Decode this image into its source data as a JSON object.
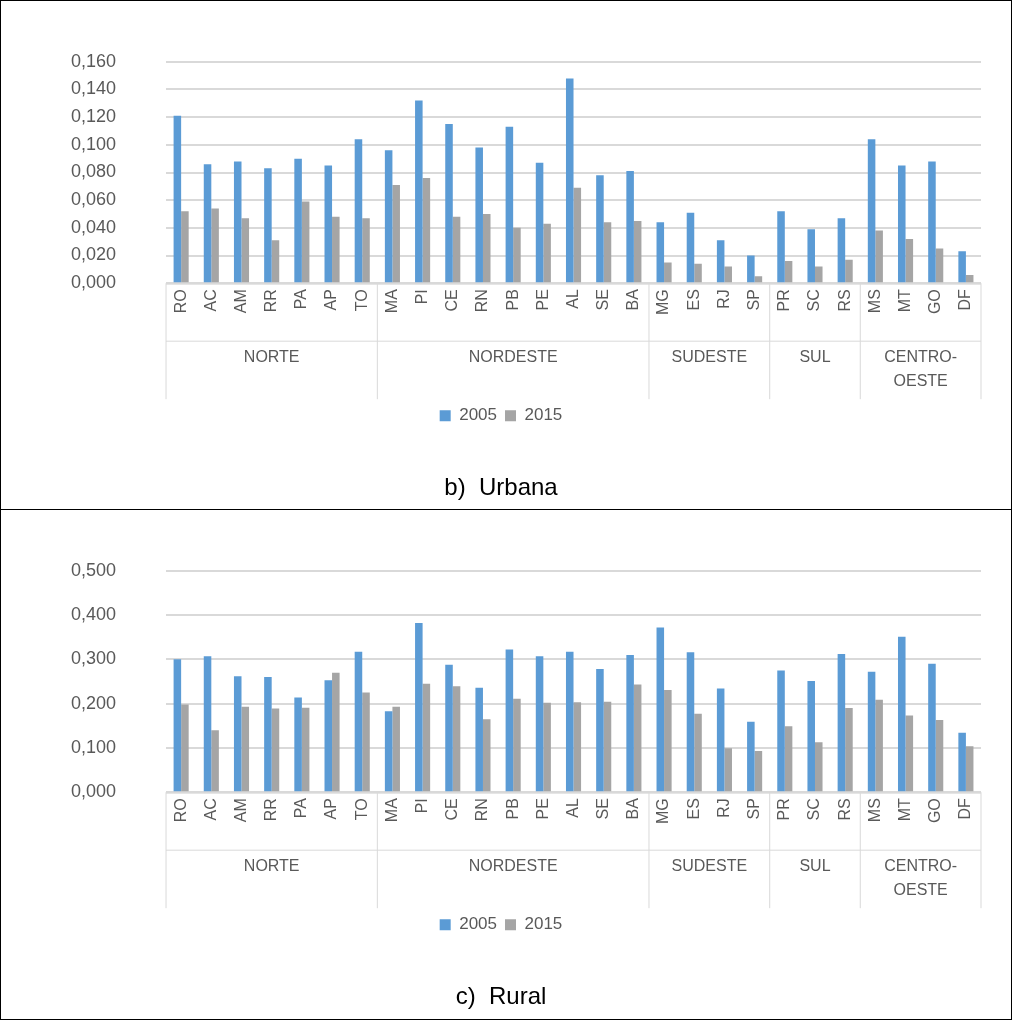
{
  "chart_data": [
    {
      "type": "bar",
      "title": "b)  Urbana",
      "categories": [
        "RO",
        "AC",
        "AM",
        "RR",
        "PA",
        "AP",
        "TO",
        "MA",
        "PI",
        "CE",
        "RN",
        "PB",
        "PE",
        "AL",
        "SE",
        "BA",
        "MG",
        "ES",
        "RJ",
        "SP",
        "PR",
        "SC",
        "RS",
        "MS",
        "MT",
        "GO",
        "DF"
      ],
      "series": [
        {
          "name": "2005",
          "color": "#5b9bd5",
          "values": [
            0.121,
            0.086,
            0.088,
            0.083,
            0.09,
            0.085,
            0.104,
            0.096,
            0.132,
            0.115,
            0.098,
            0.113,
            0.087,
            0.148,
            0.078,
            0.081,
            0.044,
            0.051,
            0.031,
            0.02,
            0.052,
            0.039,
            0.047,
            0.104,
            0.085,
            0.088,
            0.023
          ]
        },
        {
          "name": "2015",
          "color": "#a5a5a5",
          "values": [
            0.052,
            0.054,
            0.047,
            0.031,
            0.059,
            0.048,
            0.047,
            0.071,
            0.076,
            0.048,
            0.05,
            0.04,
            0.043,
            0.069,
            0.044,
            0.045,
            0.015,
            0.014,
            0.012,
            0.005,
            0.016,
            0.012,
            0.017,
            0.038,
            0.032,
            0.025,
            0.006
          ]
        }
      ],
      "ylim": [
        0,
        0.16
      ],
      "yticks": [
        {
          "value": 0,
          "label": "0,000"
        },
        {
          "value": 0.02,
          "label": "0,020"
        },
        {
          "value": 0.04,
          "label": "0,040"
        },
        {
          "value": 0.06,
          "label": "0,060"
        },
        {
          "value": 0.08,
          "label": "0,080"
        },
        {
          "value": 0.1,
          "label": "0,100"
        },
        {
          "value": 0.12,
          "label": "0,120"
        },
        {
          "value": 0.14,
          "label": "0,140"
        },
        {
          "value": 0.16,
          "label": "0,160"
        }
      ],
      "grid": "y",
      "legend": "bottom",
      "annotations": [
        "NORTE",
        "NORDESTE",
        "SUDESTE",
        "SUL",
        "CENTRO-OESTE"
      ]
    },
    {
      "type": "bar",
      "title": "c)  Rural",
      "categories": [
        "RO",
        "AC",
        "AM",
        "RR",
        "PA",
        "AP",
        "TO",
        "MA",
        "PI",
        "CE",
        "RN",
        "PB",
        "PE",
        "AL",
        "SE",
        "BA",
        "MG",
        "ES",
        "RJ",
        "SP",
        "PR",
        "SC",
        "RS",
        "MS",
        "MT",
        "GO",
        "DF"
      ],
      "series": [
        {
          "name": "2005",
          "color": "#5b9bd5",
          "values": [
            0.3,
            0.307,
            0.262,
            0.26,
            0.214,
            0.253,
            0.317,
            0.183,
            0.382,
            0.288,
            0.236,
            0.322,
            0.307,
            0.317,
            0.278,
            0.31,
            0.372,
            0.316,
            0.234,
            0.159,
            0.275,
            0.251,
            0.312,
            0.272,
            0.351,
            0.29,
            0.134
          ]
        },
        {
          "name": "2015",
          "color": "#a5a5a5",
          "values": [
            0.198,
            0.14,
            0.193,
            0.189,
            0.191,
            0.27,
            0.225,
            0.193,
            0.245,
            0.239,
            0.165,
            0.211,
            0.202,
            0.203,
            0.204,
            0.243,
            0.231,
            0.177,
            0.099,
            0.093,
            0.149,
            0.113,
            0.19,
            0.209,
            0.173,
            0.163,
            0.104
          ]
        }
      ],
      "ylim": [
        0,
        0.5
      ],
      "yticks": [
        {
          "value": 0,
          "label": "0,000"
        },
        {
          "value": 0.1,
          "label": "0,100"
        },
        {
          "value": 0.2,
          "label": "0,200"
        },
        {
          "value": 0.3,
          "label": "0,300"
        },
        {
          "value": 0.4,
          "label": "0,400"
        },
        {
          "value": 0.5,
          "label": "0,500"
        }
      ],
      "grid": "y",
      "legend": "bottom",
      "annotations": [
        "NORTE",
        "NORDESTE",
        "SUDESTE",
        "SUL",
        "CENTRO-OESTE"
      ]
    }
  ]
}
